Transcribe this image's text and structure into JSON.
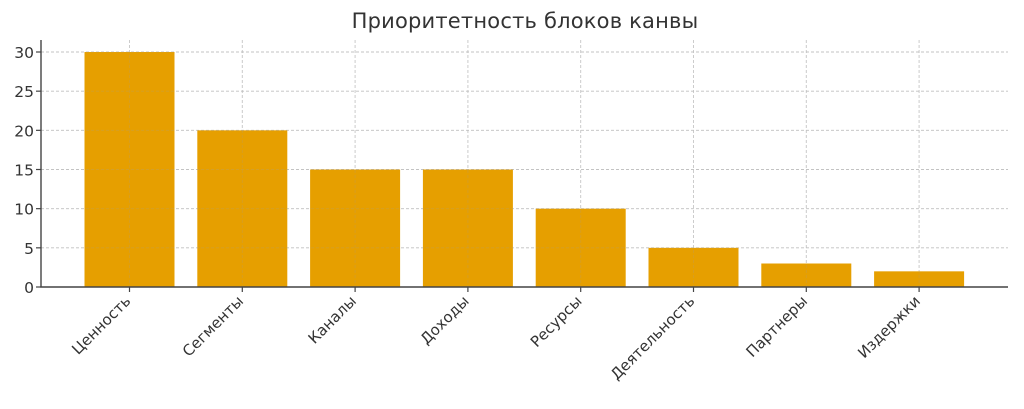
{
  "chart_data": {
    "type": "bar",
    "title": "Приоритетность блоков канвы",
    "xlabel": "",
    "ylabel": "",
    "categories": [
      "Ценность",
      "Сегменты",
      "Каналы",
      "Доходы",
      "Ресурсы",
      "Деятельность",
      "Партнеры",
      "Издержки"
    ],
    "values": [
      30,
      20,
      15,
      15,
      10,
      5,
      3,
      2
    ],
    "ylim": [
      0,
      31.5
    ],
    "yticks": [
      0,
      5,
      10,
      15,
      20,
      25,
      30
    ],
    "grid": true,
    "legend": null,
    "bar_color": "#E69F00",
    "xtick_rotation": 45
  }
}
